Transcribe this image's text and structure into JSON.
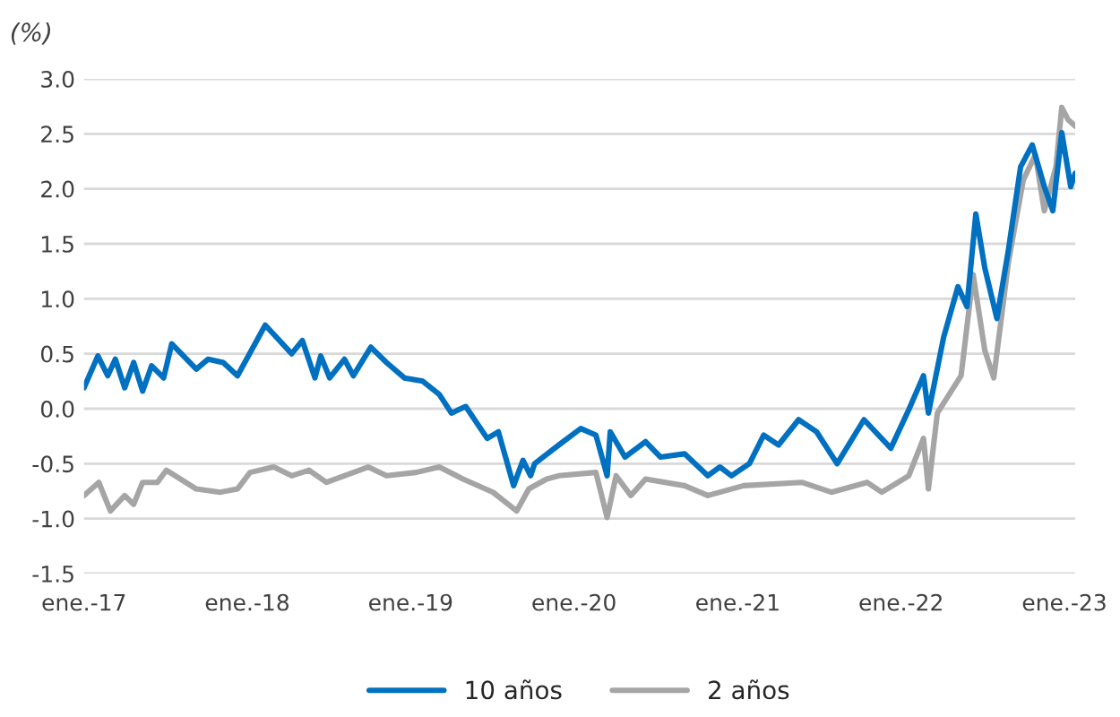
{
  "chart_data": {
    "type": "line",
    "ylabel": "(%)",
    "xlim": [
      "2017-01-01",
      "2023-01-25"
    ],
    "xticks": [
      {
        "value": "2017-01-01",
        "label": "ene.-17"
      },
      {
        "value": "2018-01-01",
        "label": "ene.-18"
      },
      {
        "value": "2019-01-01",
        "label": "ene.-19"
      },
      {
        "value": "2020-01-01",
        "label": "ene.-20"
      },
      {
        "value": "2021-01-01",
        "label": "ene.-21"
      },
      {
        "value": "2022-01-01",
        "label": "ene.-22"
      },
      {
        "value": "2023-01-01",
        "label": "ene.-23"
      }
    ],
    "ylim": [
      -1.5,
      3.0
    ],
    "yticks": [
      {
        "value": -1.5,
        "label": "-1.5"
      },
      {
        "value": -1.0,
        "label": "-1.0"
      },
      {
        "value": -0.5,
        "label": "-0.5"
      },
      {
        "value": 0.0,
        "label": "0.0"
      },
      {
        "value": 0.5,
        "label": "0.5"
      },
      {
        "value": 1.0,
        "label": "1.0"
      },
      {
        "value": 1.5,
        "label": "1.5"
      },
      {
        "value": 2.0,
        "label": "2.0"
      },
      {
        "value": 2.5,
        "label": "2.5"
      },
      {
        "value": 3.0,
        "label": "3.0"
      }
    ],
    "grid": "y",
    "legend": "bottom",
    "marker": "none",
    "line_style": "solid",
    "series": [
      {
        "name": "10 años",
        "color": "#0070c0",
        "x": [
          "2017-01-01",
          "2017-02-01",
          "2017-02-23",
          "2017-03-12",
          "2017-04-02",
          "2017-04-22",
          "2017-05-12",
          "2017-06-01",
          "2017-06-28",
          "2017-07-16",
          "2017-09-09",
          "2017-10-05",
          "2017-11-08",
          "2017-12-10",
          "2018-02-10",
          "2018-04-10",
          "2018-05-04",
          "2018-06-01",
          "2018-06-14",
          "2018-07-04",
          "2018-08-06",
          "2018-08-26",
          "2018-10-04",
          "2018-11-08",
          "2018-12-18",
          "2019-01-28",
          "2019-03-06",
          "2019-04-02",
          "2019-05-04",
          "2019-06-21",
          "2019-07-16",
          "2019-08-19",
          "2019-09-09",
          "2019-09-26",
          "2019-10-05",
          "2019-11-28",
          "2020-01-16",
          "2020-02-19",
          "2020-03-15",
          "2020-03-22",
          "2020-04-24",
          "2020-06-09",
          "2020-07-12",
          "2020-09-04",
          "2020-10-26",
          "2020-11-22",
          "2020-12-18",
          "2021-01-27",
          "2021-02-28",
          "2021-04-02",
          "2021-05-17",
          "2021-06-26",
          "2021-08-11",
          "2021-10-10",
          "2021-12-09",
          "2022-01-18",
          "2022-02-20",
          "2022-03-03",
          "2022-04-06",
          "2022-05-08",
          "2022-05-28",
          "2022-06-17",
          "2022-07-07",
          "2022-08-03",
          "2022-08-29",
          "2022-09-25",
          "2022-10-21",
          "2022-11-17",
          "2022-12-06",
          "2022-12-26",
          "2023-01-15",
          "2023-01-25"
        ],
        "values": [
          0.19,
          0.48,
          0.3,
          0.45,
          0.19,
          0.42,
          0.16,
          0.39,
          0.28,
          0.59,
          0.36,
          0.45,
          0.42,
          0.3,
          0.76,
          0.5,
          0.62,
          0.28,
          0.48,
          0.28,
          0.45,
          0.3,
          0.56,
          0.42,
          0.28,
          0.25,
          0.13,
          -0.04,
          0.02,
          -0.27,
          -0.21,
          -0.7,
          -0.47,
          -0.61,
          -0.5,
          -0.33,
          -0.18,
          -0.24,
          -0.61,
          -0.21,
          -0.44,
          -0.3,
          -0.44,
          -0.41,
          -0.61,
          -0.53,
          -0.61,
          -0.5,
          -0.24,
          -0.33,
          -0.1,
          -0.21,
          -0.5,
          -0.1,
          -0.36,
          -0.01,
          0.3,
          -0.04,
          0.65,
          1.11,
          0.93,
          1.77,
          1.28,
          0.82,
          1.45,
          2.2,
          2.4,
          2.02,
          1.8,
          2.51,
          2.02,
          2.14
        ]
      },
      {
        "name": "2 años",
        "color": "#a5a5a5",
        "x": [
          "2017-01-01",
          "2017-02-03",
          "2017-03-01",
          "2017-04-02",
          "2017-04-22",
          "2017-05-12",
          "2017-06-14",
          "2017-07-04",
          "2017-09-09",
          "2017-11-01",
          "2017-12-10",
          "2018-01-07",
          "2018-03-01",
          "2018-04-10",
          "2018-05-19",
          "2018-06-27",
          "2018-09-28",
          "2018-11-08",
          "2019-01-13",
          "2019-03-06",
          "2019-04-28",
          "2019-07-04",
          "2019-08-26",
          "2019-09-22",
          "2019-11-01",
          "2019-11-28",
          "2020-02-19",
          "2020-03-15",
          "2020-04-04",
          "2020-05-07",
          "2020-06-09",
          "2020-09-04",
          "2020-10-26",
          "2021-01-14",
          "2021-05-24",
          "2021-07-29",
          "2021-10-17",
          "2021-11-19",
          "2022-01-18",
          "2022-02-20",
          "2022-03-03",
          "2022-03-23",
          "2022-05-15",
          "2022-06-11",
          "2022-07-07",
          "2022-07-27",
          "2022-08-29",
          "2022-10-01",
          "2022-10-28",
          "2022-11-17",
          "2022-12-13",
          "2022-12-26",
          "2023-01-09",
          "2023-01-25"
        ],
        "values": [
          -0.79,
          -0.67,
          -0.93,
          -0.79,
          -0.87,
          -0.67,
          -0.67,
          -0.56,
          -0.73,
          -0.76,
          -0.73,
          -0.58,
          -0.53,
          -0.61,
          -0.56,
          -0.67,
          -0.53,
          -0.61,
          -0.58,
          -0.53,
          -0.64,
          -0.76,
          -0.93,
          -0.73,
          -0.64,
          -0.61,
          -0.58,
          -0.99,
          -0.61,
          -0.79,
          -0.64,
          -0.7,
          -0.79,
          -0.7,
          -0.67,
          -0.76,
          -0.67,
          -0.76,
          -0.61,
          -0.27,
          -0.73,
          -0.04,
          0.3,
          1.22,
          0.53,
          0.28,
          1.34,
          2.08,
          2.31,
          1.8,
          2.2,
          2.74,
          2.63,
          2.57
        ]
      }
    ]
  }
}
